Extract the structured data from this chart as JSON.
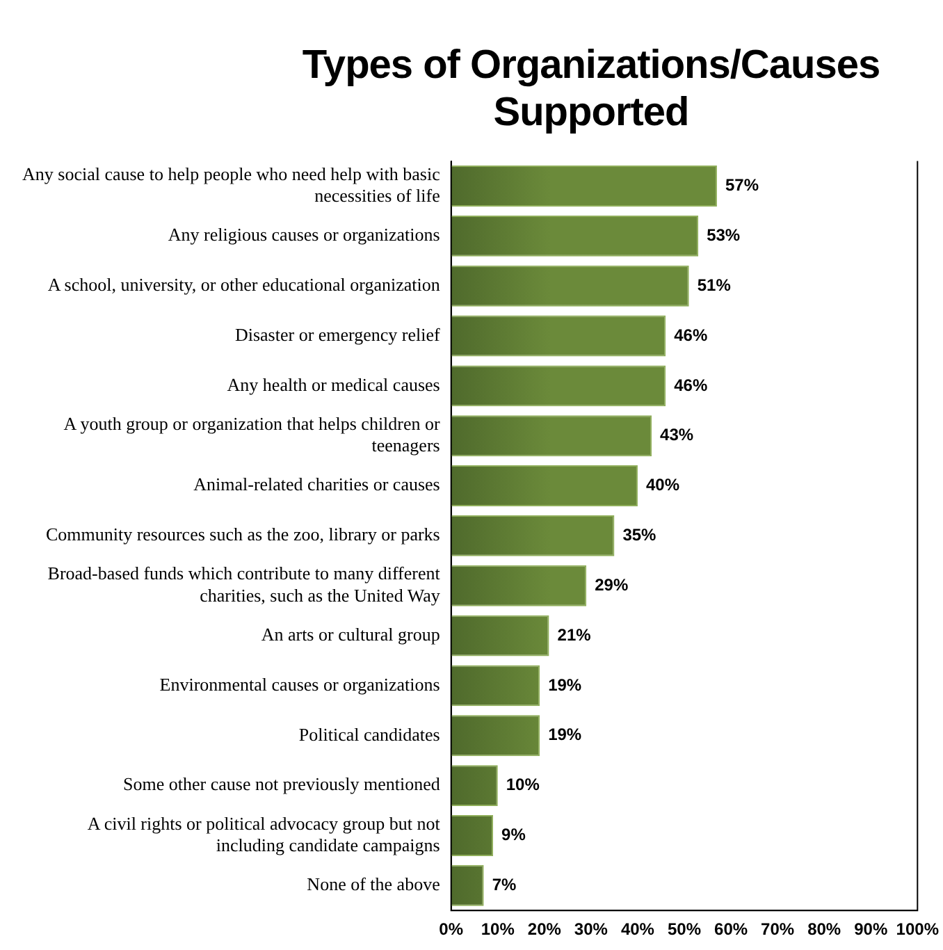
{
  "chart_data": {
    "type": "bar",
    "orientation": "horizontal",
    "title": "Types of Organizations/Causes Supported",
    "categories": [
      "Any social cause to help people who need help with basic necessities of life",
      "Any religious causes or organizations",
      "A school, university, or other educational organization",
      "Disaster or emergency relief",
      "Any health or medical causes",
      "A youth group or organization that helps children or teenagers",
      "Animal-related charities or causes",
      "Community resources such as the zoo, library or parks",
      "Broad-based funds which contribute to many different charities, such as the United Way",
      "An arts or cultural group",
      "Environmental causes or organizations",
      "Political candidates",
      "Some other cause not previously mentioned",
      "A civil rights or political advocacy group but not including candidate campaigns",
      "None of the above"
    ],
    "values": [
      57,
      53,
      51,
      46,
      46,
      43,
      40,
      35,
      29,
      21,
      19,
      19,
      10,
      9,
      7
    ],
    "value_labels": [
      "57%",
      "53%",
      "51%",
      "46%",
      "46%",
      "43%",
      "40%",
      "35%",
      "29%",
      "21%",
      "19%",
      "19%",
      "10%",
      "9%",
      "7%"
    ],
    "color": "#6b8a3a",
    "xlim": [
      0,
      100
    ],
    "xticks": [
      {
        "value": 0,
        "label": "0%"
      },
      {
        "value": 10,
        "label": "10%"
      },
      {
        "value": 20,
        "label": "20%"
      },
      {
        "value": 30,
        "label": "30%"
      },
      {
        "value": 40,
        "label": "40%"
      },
      {
        "value": 50,
        "label": "50%"
      },
      {
        "value": 60,
        "label": "60%"
      },
      {
        "value": 70,
        "label": "70%"
      },
      {
        "value": 80,
        "label": "80%"
      },
      {
        "value": 90,
        "label": "90%"
      },
      {
        "value": 100,
        "label": "100%"
      }
    ],
    "grid": false,
    "legend": false
  }
}
